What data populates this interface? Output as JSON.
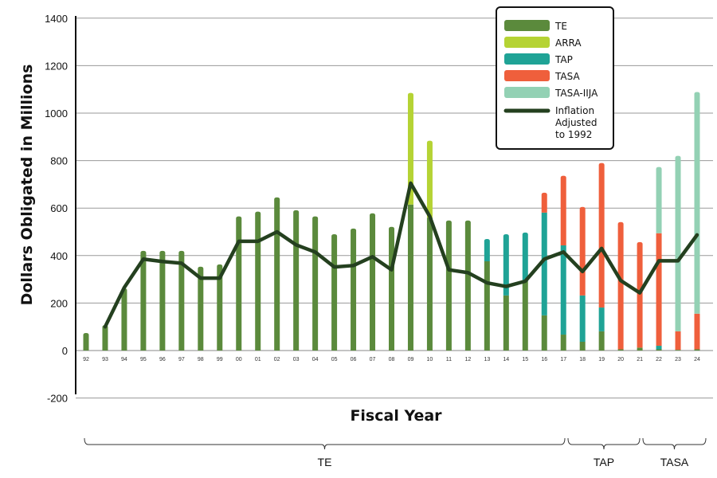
{
  "chart_data": {
    "type": "bar",
    "stacked": true,
    "title": "",
    "xlabel": "Fiscal Year",
    "ylabel": "Dollars Obligated in Millions",
    "ylim": [
      -200,
      1400
    ],
    "yticks": [
      "1400",
      "1200",
      "1000",
      "800",
      "600",
      "400",
      "200",
      "0",
      "-200"
    ],
    "ytick_values": [
      1400,
      1200,
      1000,
      800,
      600,
      400,
      200,
      0,
      -200
    ],
    "grid": true,
    "legend_position": "top-right",
    "categories": [
      "92",
      "93",
      "94",
      "95",
      "96",
      "97",
      "98",
      "99",
      "00",
      "01",
      "02",
      "03",
      "04",
      "05",
      "06",
      "07",
      "08",
      "09",
      "10",
      "11",
      "12",
      "13",
      "14",
      "15",
      "16",
      "17",
      "18",
      "19",
      "20",
      "21",
      "22",
      "23",
      "24"
    ],
    "series": [
      {
        "name": "TE",
        "color": "#5b8a3c",
        "values": [
          74,
          107,
          262,
          420,
          420,
          420,
          353,
          363,
          565,
          585,
          645,
          591,
          565,
          490,
          514,
          578,
          521,
          615,
          560,
          548,
          548,
          376,
          232,
          292,
          148,
          67,
          37,
          81,
          5,
          12,
          5,
          3,
          5
        ]
      },
      {
        "name": "ARRA",
        "color": "#b5d334",
        "values": [
          0,
          0,
          0,
          0,
          0,
          0,
          0,
          0,
          0,
          0,
          0,
          0,
          0,
          0,
          0,
          0,
          0,
          470,
          324,
          0,
          0,
          0,
          0,
          0,
          0,
          0,
          0,
          0,
          0,
          0,
          0,
          0,
          0
        ]
      },
      {
        "name": "TAP",
        "color": "#1fa396",
        "values": [
          0,
          0,
          0,
          0,
          0,
          0,
          0,
          0,
          0,
          0,
          0,
          0,
          0,
          0,
          0,
          0,
          0,
          0,
          0,
          0,
          0,
          94,
          258,
          205,
          433,
          376,
          195,
          100,
          0,
          0,
          15,
          0,
          0
        ]
      },
      {
        "name": "TASA",
        "color": "#ef5f3c",
        "values": [
          0,
          0,
          0,
          0,
          0,
          0,
          0,
          0,
          0,
          0,
          0,
          0,
          0,
          0,
          0,
          0,
          0,
          0,
          0,
          0,
          0,
          0,
          0,
          0,
          84,
          293,
          373,
          609,
          536,
          445,
          474,
          78,
          150
        ]
      },
      {
        "name": "TASA-IIJA",
        "color": "#93d1b4",
        "values": [
          0,
          0,
          0,
          0,
          0,
          0,
          0,
          0,
          0,
          0,
          0,
          0,
          0,
          0,
          0,
          0,
          0,
          0,
          0,
          0,
          0,
          0,
          0,
          0,
          0,
          0,
          0,
          0,
          0,
          0,
          279,
          739,
          934
        ]
      }
    ],
    "line_series": {
      "name": "Inflation Adjusted to 1992",
      "color": "#24401f",
      "values": [
        null,
        100,
        265,
        385,
        375,
        368,
        305,
        305,
        460,
        460,
        500,
        445,
        415,
        352,
        358,
        395,
        340,
        705,
        565,
        340,
        328,
        285,
        270,
        292,
        385,
        415,
        333,
        430,
        295,
        243,
        378,
        378,
        487
      ]
    },
    "legend": [
      {
        "label": "TE",
        "color": "#5b8a3c",
        "kind": "bar"
      },
      {
        "label": "ARRA",
        "color": "#b5d334",
        "kind": "bar"
      },
      {
        "label": "TAP",
        "color": "#1fa396",
        "kind": "bar"
      },
      {
        "label": "TASA",
        "color": "#ef5f3c",
        "kind": "bar"
      },
      {
        "label": "TASA-IIJA",
        "color": "#93d1b4",
        "kind": "bar"
      },
      {
        "label_lines": [
          "Inflation",
          "Adjusted",
          "to 1992"
        ],
        "color": "#24401f",
        "kind": "line"
      }
    ],
    "program_periods": [
      {
        "label": "TE",
        "from": "92",
        "to": "17"
      },
      {
        "label": "TAP",
        "from": "17",
        "to": "21"
      },
      {
        "label": "TASA",
        "from": "21",
        "to": "24"
      }
    ]
  }
}
